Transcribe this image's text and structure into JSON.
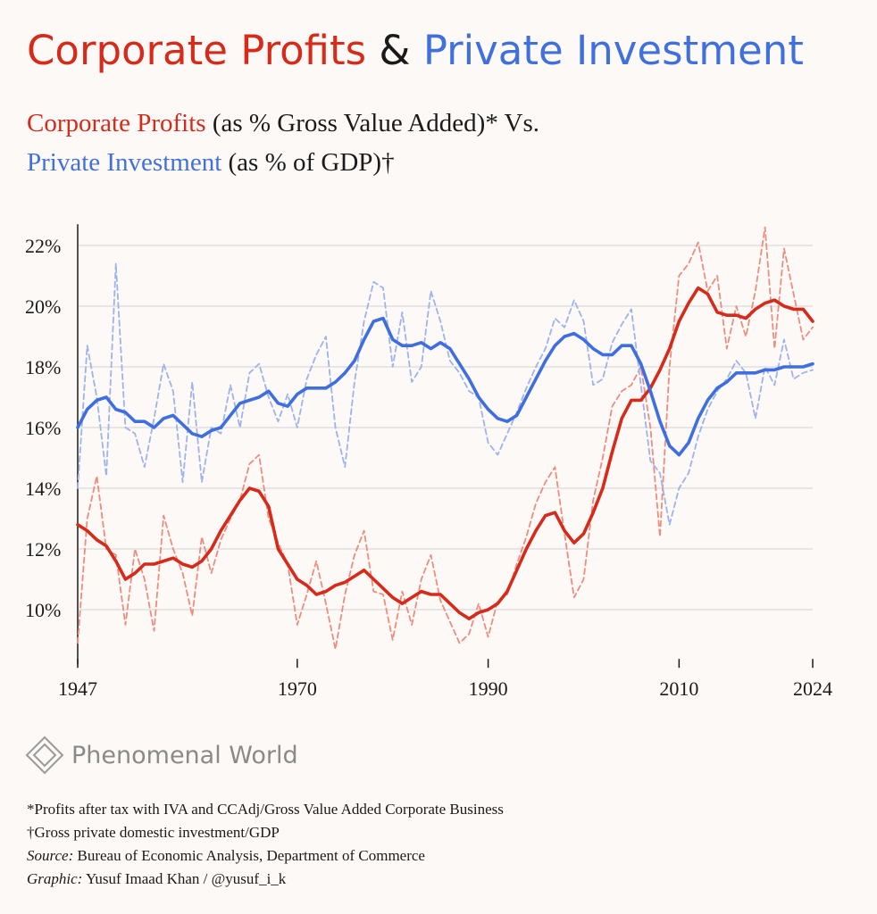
{
  "chart_data": {
    "type": "line",
    "title_parts": [
      {
        "text": "Corporate Profits",
        "color": "#d62a1a"
      },
      {
        "text": "&",
        "color": "#1a1a1a"
      },
      {
        "text": "Private Investment",
        "color": "#4070dd"
      }
    ],
    "subtitle_lines": [
      [
        {
          "text": "Corporate Profits",
          "color": "#d62a1a"
        },
        {
          "text": "(as % Gross Value Added)* Vs.",
          "color": "#1a1a1a"
        }
      ],
      [
        {
          "text": "Private Investment",
          "color": "#4070dd"
        },
        {
          "text": "(as % of GDP)†",
          "color": "#1a1a1a"
        }
      ]
    ],
    "x": [
      1947,
      1948,
      1949,
      1950,
      1951,
      1952,
      1953,
      1954,
      1955,
      1956,
      1957,
      1958,
      1959,
      1960,
      1961,
      1962,
      1963,
      1964,
      1965,
      1966,
      1967,
      1968,
      1969,
      1970,
      1971,
      1972,
      1973,
      1974,
      1975,
      1976,
      1977,
      1978,
      1979,
      1980,
      1981,
      1982,
      1983,
      1984,
      1985,
      1986,
      1987,
      1988,
      1989,
      1990,
      1991,
      1992,
      1993,
      1994,
      1995,
      1996,
      1997,
      1998,
      1999,
      2000,
      2001,
      2002,
      2003,
      2004,
      2005,
      2006,
      2007,
      2008,
      2009,
      2010,
      2011,
      2012,
      2013,
      2014,
      2015,
      2016,
      2017,
      2018,
      2019,
      2020,
      2021,
      2022,
      2023,
      2024
    ],
    "series": [
      {
        "color": "#ec8d7e",
        "dashed": true,
        "values": [
          8.9,
          13.0,
          14.4,
          12.0,
          11.8,
          9.5,
          12.0,
          11.0,
          9.3,
          13.1,
          12.0,
          11.2,
          9.8,
          12.4,
          11.2,
          12.3,
          13.0,
          13.6,
          14.8,
          15.1,
          13.0,
          12.2,
          11.5,
          9.5,
          10.5,
          11.6,
          10.2,
          8.7,
          10.5,
          11.8,
          12.6,
          10.6,
          10.5,
          9.0,
          10.6,
          9.5,
          11.0,
          11.8,
          10.3,
          9.6,
          8.9,
          9.2,
          10.2,
          9.1,
          10.3,
          10.5,
          11.5,
          12.4,
          13.5,
          14.2,
          14.7,
          12.5,
          10.4,
          11.0,
          13.6,
          15.0,
          16.7,
          17.2,
          17.4,
          18.0,
          16.0,
          12.4,
          18.0,
          21.0,
          21.4,
          22.1,
          20.5,
          21.0,
          18.6,
          20.0,
          19.0,
          20.5,
          22.6,
          18.6,
          21.9,
          20.4,
          18.9,
          19.3
        ]
      },
      {
        "color": "#9db3ec",
        "dashed": true,
        "values": [
          14.0,
          18.7,
          17.0,
          14.4,
          21.4,
          16.0,
          15.8,
          14.7,
          16.3,
          18.1,
          17.2,
          14.2,
          17.5,
          14.2,
          16.0,
          15.8,
          17.4,
          16.0,
          17.8,
          18.1,
          17.0,
          16.2,
          17.1,
          16.0,
          17.6,
          18.4,
          19.0,
          16.0,
          14.7,
          17.5,
          19.5,
          20.8,
          20.6,
          18.0,
          19.8,
          17.5,
          18.0,
          20.5,
          19.5,
          18.2,
          17.8,
          17.2,
          17.0,
          15.5,
          15.1,
          15.8,
          16.5,
          17.3,
          18.0,
          18.6,
          19.6,
          19.3,
          20.2,
          19.5,
          17.4,
          17.6,
          18.8,
          19.4,
          19.9,
          17.4,
          14.9,
          14.5,
          12.8,
          14.0,
          14.5,
          15.7,
          16.6,
          17.2,
          17.6,
          18.2,
          17.8,
          16.3,
          18.0,
          17.4,
          18.9,
          17.6,
          17.8,
          17.9
        ]
      },
      {
        "color": "#d62a1a",
        "dashed": false,
        "values": [
          12.8,
          12.6,
          12.3,
          12.1,
          11.6,
          11.0,
          11.2,
          11.5,
          11.5,
          11.6,
          11.7,
          11.5,
          11.4,
          11.6,
          12.0,
          12.6,
          13.1,
          13.6,
          14.0,
          13.9,
          13.4,
          12.0,
          11.5,
          11.0,
          10.8,
          10.5,
          10.6,
          10.8,
          10.9,
          11.1,
          11.3,
          11.0,
          10.7,
          10.4,
          10.2,
          10.4,
          10.6,
          10.5,
          10.5,
          10.2,
          9.9,
          9.7,
          9.9,
          10.0,
          10.2,
          10.6,
          11.3,
          12.0,
          12.6,
          13.1,
          13.2,
          12.6,
          12.2,
          12.5,
          13.2,
          14.0,
          15.2,
          16.3,
          16.9,
          16.9,
          17.3,
          17.9,
          18.6,
          19.5,
          20.1,
          20.6,
          20.4,
          19.8,
          19.7,
          19.7,
          19.6,
          19.9,
          20.1,
          20.2,
          20.0,
          19.9,
          19.9,
          19.5
        ]
      },
      {
        "color": "#3e6ee0",
        "dashed": false,
        "values": [
          16.0,
          16.6,
          16.9,
          17.0,
          16.6,
          16.5,
          16.2,
          16.2,
          16.0,
          16.3,
          16.4,
          16.1,
          15.8,
          15.7,
          15.9,
          16.0,
          16.4,
          16.8,
          16.9,
          17.0,
          17.2,
          16.8,
          16.7,
          17.1,
          17.3,
          17.3,
          17.3,
          17.5,
          17.8,
          18.2,
          18.9,
          19.5,
          19.6,
          18.9,
          18.7,
          18.7,
          18.8,
          18.6,
          18.8,
          18.6,
          18.1,
          17.6,
          17.0,
          16.6,
          16.3,
          16.2,
          16.4,
          17.0,
          17.6,
          18.2,
          18.7,
          19.0,
          19.1,
          18.9,
          18.6,
          18.4,
          18.4,
          18.7,
          18.7,
          18.1,
          17.2,
          16.2,
          15.4,
          15.1,
          15.5,
          16.3,
          16.9,
          17.3,
          17.5,
          17.8,
          17.8,
          17.8,
          17.9,
          17.9,
          18.0,
          18.0,
          18.0,
          18.1
        ]
      }
    ],
    "xlim": [
      1947,
      2024
    ],
    "xticks": [
      1947,
      1970,
      1990,
      2010,
      2024
    ],
    "ylim": [
      8.2,
      22.7
    ],
    "yticks": [
      {
        "value": 10,
        "label": "10%"
      },
      {
        "value": 12,
        "label": "12%"
      },
      {
        "value": 14,
        "label": "14%"
      },
      {
        "value": 16,
        "label": "16%"
      },
      {
        "value": 18,
        "label": "18%"
      },
      {
        "value": 20,
        "label": "20%"
      },
      {
        "value": 22,
        "label": "22%"
      }
    ],
    "grid": true,
    "brand": "Phenomenal World",
    "notes": [
      "*Profits after tax with IVA and CCAdj/Gross Value Added Corporate Business",
      "†Gross private domestic investment/GDP"
    ],
    "source": {
      "label": "Source:",
      "text": "Bureau of Economic Analysis, Department of Commerce"
    },
    "graphic": {
      "label": "Graphic:",
      "text": "Yusuf Imaad Khan / @yusuf_i_k"
    }
  }
}
